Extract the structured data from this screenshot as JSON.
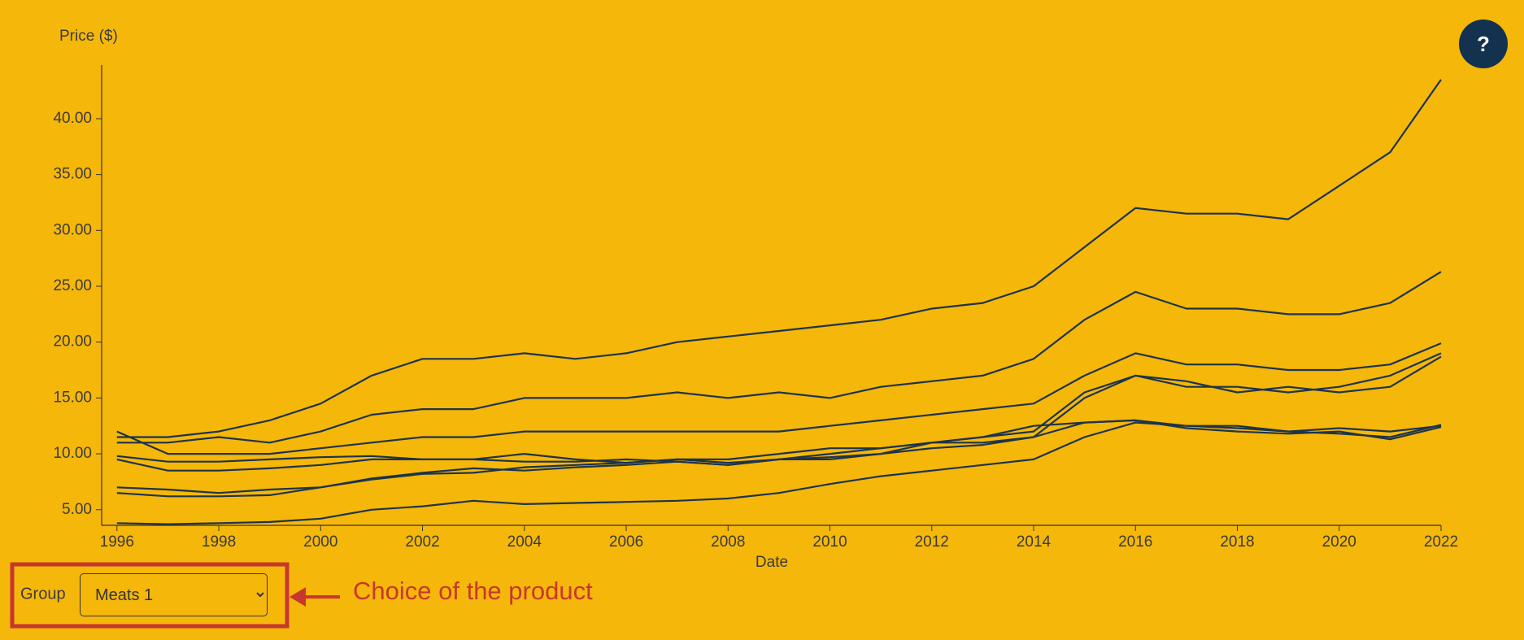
{
  "chart_data": {
    "type": "line",
    "y_label": "Price ($)",
    "x_label": "Date",
    "x": [
      1996,
      1997,
      1998,
      1999,
      2000,
      2001,
      2002,
      2003,
      2004,
      2005,
      2006,
      2007,
      2008,
      2009,
      2010,
      2011,
      2012,
      2013,
      2014,
      2015,
      2016,
      2017,
      2018,
      2019,
      2020,
      2021,
      2022
    ],
    "series": [
      {
        "color": "#1d3449",
        "values": [
          11.5,
          11.5,
          12,
          13,
          14.5,
          17,
          18.5,
          18.5,
          19,
          18.5,
          19,
          20,
          20.5,
          21,
          21.5,
          22,
          23,
          23.5,
          25,
          28.5,
          32,
          31.5,
          31.5,
          31,
          34,
          37,
          43.5
        ]
      },
      {
        "color": "#1d3449",
        "values": [
          11,
          11,
          11.5,
          11,
          12,
          13.5,
          14,
          14,
          15,
          15,
          15,
          15.5,
          15,
          15.5,
          15,
          16,
          16.5,
          17,
          18.5,
          22,
          24.5,
          23,
          23,
          22.5,
          22.5,
          23.5,
          26.3
        ]
      },
      {
        "color": "#1d3449",
        "values": [
          12,
          10,
          10,
          10,
          10.5,
          11,
          11.5,
          11.5,
          12,
          12,
          12,
          12,
          12,
          12,
          12.5,
          13,
          13.5,
          14,
          14.5,
          17,
          19,
          18,
          18,
          17.5,
          17.5,
          18,
          19.9
        ]
      },
      {
        "color": "#1d3449",
        "values": [
          9.8,
          9.3,
          9.3,
          9.5,
          9.7,
          9.8,
          9.5,
          9.5,
          10,
          9.5,
          9.2,
          9.5,
          9.5,
          10,
          10.5,
          10.5,
          11,
          11.5,
          12,
          15.5,
          17,
          16,
          16,
          15.5,
          16,
          17,
          19
        ]
      },
      {
        "color": "#1d3449",
        "values": [
          9.5,
          8.5,
          8.5,
          8.7,
          9,
          9.5,
          9.5,
          9.5,
          9.3,
          9.3,
          9.5,
          9.3,
          9,
          9.5,
          10,
          10.5,
          11,
          11,
          11.5,
          15,
          17,
          16.5,
          15.5,
          16,
          15.5,
          16,
          18.7
        ]
      },
      {
        "color": "#1d3449",
        "values": [
          7,
          6.8,
          6.5,
          6.8,
          7,
          7.8,
          8.3,
          8.7,
          8.5,
          8.8,
          9,
          9.3,
          9,
          9.5,
          9.5,
          10,
          11,
          11.5,
          12.5,
          12.8,
          13,
          12.5,
          12.5,
          12,
          12.3,
          12,
          12.5
        ]
      },
      {
        "color": "#1d3449",
        "values": [
          6.5,
          6.2,
          6.2,
          6.3,
          7,
          7.7,
          8.2,
          8.3,
          8.8,
          9,
          9.2,
          9.5,
          9.2,
          9.5,
          9.7,
          10,
          10.5,
          10.8,
          11.5,
          12.8,
          13,
          12.3,
          12,
          11.8,
          12,
          11.3,
          12.4
        ]
      },
      {
        "color": "#1d3449",
        "values": [
          3.8,
          3.7,
          3.8,
          3.9,
          4.2,
          5,
          5.3,
          5.8,
          5.5,
          5.6,
          5.7,
          5.8,
          6,
          6.5,
          7.3,
          8,
          8.5,
          9,
          9.5,
          11.5,
          12.8,
          12.5,
          12.3,
          12,
          11.8,
          11.5,
          12.6
        ]
      }
    ],
    "xlim": [
      1995.7,
      2022
    ],
    "xticks": [
      1996,
      1998,
      2000,
      2002,
      2004,
      2006,
      2008,
      2010,
      2012,
      2014,
      2016,
      2018,
      2020,
      2022
    ],
    "ylim": [
      3.6,
      44.8
    ],
    "yticks": [
      {
        "value": 5,
        "label": "5.00"
      },
      {
        "value": 10,
        "label": "10.00"
      },
      {
        "value": 15,
        "label": "15.00"
      },
      {
        "value": 20,
        "label": "20.00"
      },
      {
        "value": 25,
        "label": "25.00"
      },
      {
        "value": 30,
        "label": "30.00"
      },
      {
        "value": 35,
        "label": "35.00"
      },
      {
        "value": 40,
        "label": "40.00"
      }
    ]
  },
  "controls": {
    "group_label": "Group",
    "group_value": "Meats 1"
  },
  "help_button": "?",
  "annotation": "Choice of the product"
}
